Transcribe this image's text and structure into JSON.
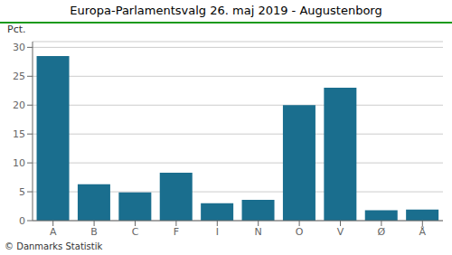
{
  "chart_data": {
    "type": "bar",
    "title": "Europa-Parlamentsvalg 26. maj 2019 - Augustenborg",
    "categories": [
      "A",
      "B",
      "C",
      "F",
      "I",
      "N",
      "O",
      "V",
      "Ø",
      "Å"
    ],
    "values": [
      28.5,
      6.3,
      4.9,
      8.3,
      3.0,
      3.6,
      20.0,
      23.0,
      1.8,
      1.9
    ],
    "color": "#1a6e8e",
    "ylabel": "Pct.",
    "ylim": [
      0,
      31
    ],
    "yticks": [
      0,
      5,
      10,
      15,
      20,
      25,
      30
    ],
    "grid": true,
    "annotations": [
      "© Danmarks Statistik"
    ]
  }
}
